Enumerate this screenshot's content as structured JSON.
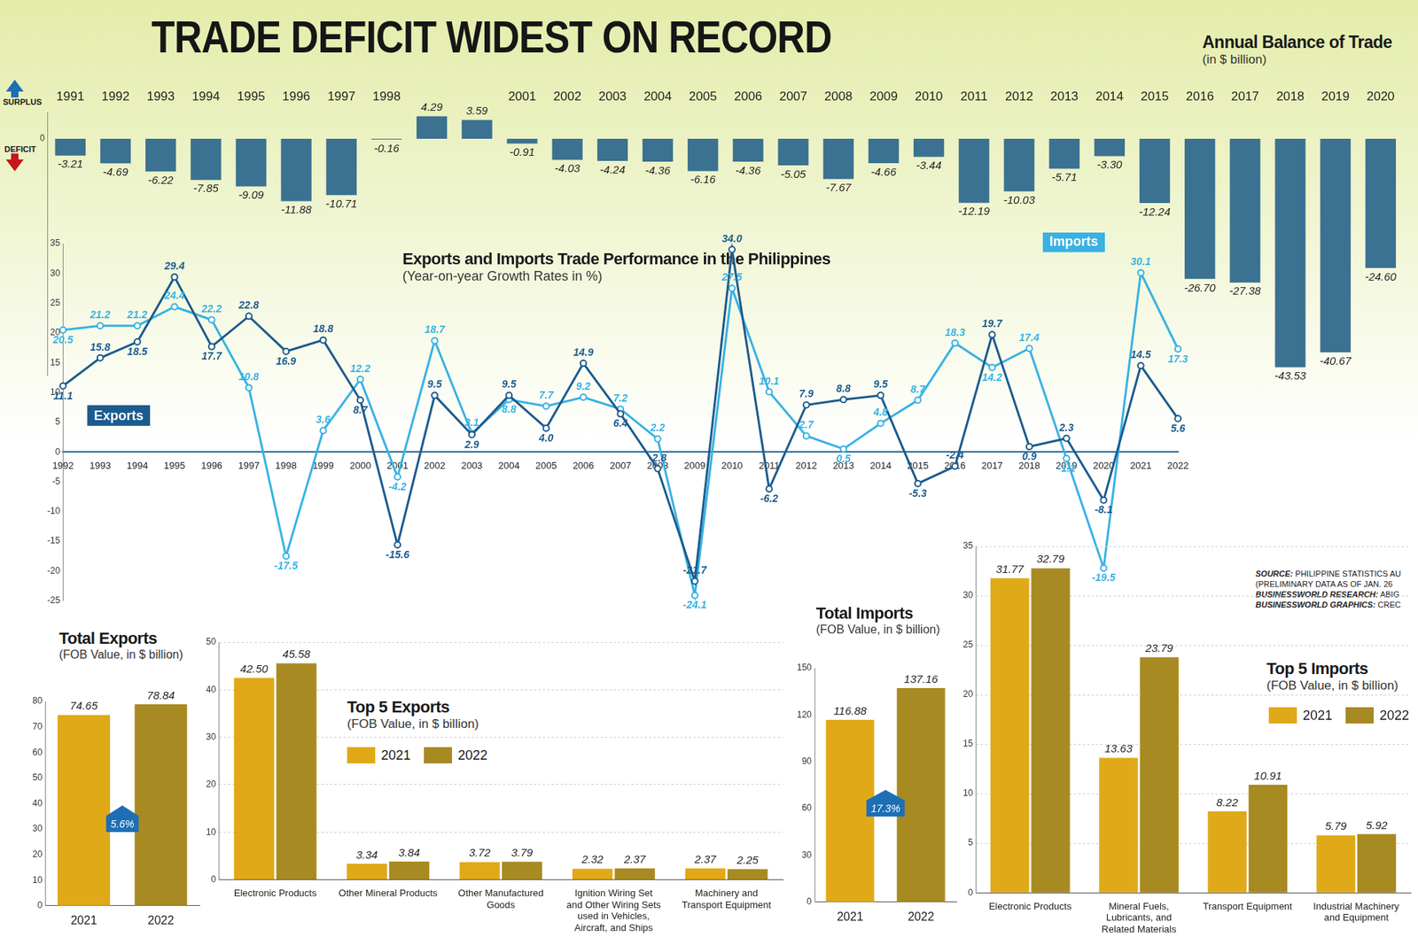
{
  "title": "TRADE DEFICIT WIDEST ON RECORD",
  "source": [
    "SOURCE: PHILIPPINE STATISTICS AU",
    "(PRELIMINARY DATA AS OF JAN. 26",
    "BUSINESSWORLD RESEARCH: ABIG",
    "BUSINESSWORLD GRAPHICS: CREC"
  ],
  "chart_data": [
    {
      "type": "bar",
      "title": "Annual Balance of Trade",
      "subtitle": "(in $ billion)",
      "annotations": {
        "surplus": "SURPLUS",
        "deficit": "DEFICIT"
      },
      "categories": [
        "1991",
        "1992",
        "1993",
        "1994",
        "1995",
        "1996",
        "1997",
        "1998",
        null,
        null,
        "2001",
        "2002",
        "2003",
        "2004",
        "2005",
        "2006",
        "2007",
        "2008",
        "2009",
        "2010",
        "2011",
        "2012",
        "2013",
        "2014",
        "2015",
        "2016",
        "2017",
        "2018",
        "2019",
        "2020"
      ],
      "values": [
        -3.21,
        -4.69,
        -6.22,
        -7.85,
        -9.09,
        -11.88,
        -10.71,
        -0.16,
        4.29,
        3.59,
        -0.91,
        -4.03,
        -4.24,
        -4.36,
        -6.16,
        -4.36,
        -5.05,
        -7.67,
        -4.66,
        -3.44,
        -12.19,
        -10.03,
        -5.71,
        -3.3,
        -12.24,
        -26.7,
        -27.38,
        -43.53,
        -40.67,
        -24.6
      ],
      "value_labels": [
        "-3.21",
        "-4.69",
        "-6.22",
        "-7.85",
        "-9.09",
        "-11.88",
        "-10.71",
        "-0.16",
        "4.29",
        "3.59",
        "-0.91",
        "-4.03",
        "-4.24",
        "-4.36",
        "-6.16",
        "-4.36",
        "-5.05",
        "-7.67",
        "-4.66",
        "-3.44",
        "-12.19",
        "-10.03",
        "-5.71",
        "-3.30",
        "-12.24",
        "-26.70",
        "-27.38",
        "-43.53",
        "-40.67",
        "-24.60"
      ],
      "color": "#3b7191",
      "ylim": [
        -45,
        5
      ],
      "yticks": [
        0
      ],
      "grid": false,
      "data_labels": true
    },
    {
      "type": "line",
      "title": "Exports and Imports Trade Performance in the Philippines",
      "subtitle": "(Year-on-year Growth Rates in %)",
      "categories": [
        "1992",
        "1993",
        "1994",
        "1995",
        "1996",
        "1997",
        "1998",
        "1999",
        "2000",
        "2001",
        "2002",
        "2003",
        "2004",
        "2005",
        "2006",
        "2007",
        "2008",
        "2009",
        "2010",
        "2011",
        "2012",
        "2013",
        "2014",
        "2015",
        "2016",
        "2017",
        "2018",
        "2019",
        "2020",
        "2021",
        "2022"
      ],
      "series": [
        {
          "name": "Exports",
          "color": "#1c5b8e",
          "values": [
            11.1,
            15.8,
            18.5,
            29.4,
            17.7,
            22.8,
            16.9,
            18.8,
            8.7,
            -15.6,
            9.5,
            2.9,
            9.5,
            4.0,
            14.9,
            6.4,
            -2.8,
            -21.7,
            34.0,
            -6.2,
            7.9,
            8.8,
            9.5,
            -5.3,
            -2.4,
            19.7,
            0.9,
            2.3,
            -8.1,
            14.5,
            5.6
          ],
          "value_labels": [
            "11.1",
            "15.8",
            "18.5",
            "29.4",
            "17.7",
            "22.8",
            "16.9",
            "18.8",
            "8.7",
            "-15.6",
            "9.5",
            "2.9",
            "9.5",
            "4.0",
            "14.9",
            "6.4",
            "-2.8",
            "-21.7",
            "34.0",
            "-6.2",
            "7.9",
            "8.8",
            "9.5",
            "-5.3",
            "-2.4",
            "19.7",
            "0.9",
            "2.3",
            "-8.1",
            "14.5",
            "5.6"
          ]
        },
        {
          "name": "Imports",
          "color": "#38b2e4",
          "values": [
            20.5,
            21.2,
            21.2,
            24.4,
            22.2,
            10.8,
            -17.5,
            3.6,
            12.2,
            -4.2,
            18.7,
            3.1,
            8.8,
            7.7,
            9.2,
            7.2,
            2.2,
            -24.1,
            27.5,
            10.1,
            2.7,
            0.5,
            4.8,
            8.7,
            18.3,
            14.2,
            17.4,
            -1.1,
            -19.5,
            30.1,
            17.3
          ],
          "value_labels": [
            "20.5",
            "21.2",
            "21.2",
            "24.4",
            "22.2",
            "10.8",
            "-17.5",
            "3.6",
            "12.2",
            "-4.2",
            "18.7",
            "3.1",
            "8.8",
            "7.7",
            "9.2",
            "7.2",
            "2.2",
            "-24.1",
            "27.5",
            "10.1",
            "2.7",
            "0.5",
            "4.8",
            "8.7",
            "18.3",
            "14.2",
            "17.4",
            "-1.1",
            "-19.5",
            "30.1",
            "17.3"
          ]
        }
      ],
      "ylim": [
        -25,
        35
      ],
      "yticks": [
        -25,
        -20,
        -15,
        -10,
        -5,
        0,
        5,
        10,
        15,
        20,
        25,
        30,
        35
      ],
      "grid": false,
      "data_labels": true,
      "marker": "circle"
    },
    {
      "type": "bar",
      "title": "Total Exports",
      "subtitle": "(FOB Value, in $ billion)",
      "categories": [
        "2021",
        "2022"
      ],
      "values": [
        74.65,
        78.84
      ],
      "value_labels": [
        "74.65",
        "78.84"
      ],
      "colors": [
        "#e0a918",
        "#a88a22"
      ],
      "annotations": [
        "5.6%"
      ],
      "ylim": [
        0,
        80
      ],
      "yticks": [
        0,
        10,
        20,
        30,
        40,
        50,
        60,
        70,
        80
      ],
      "grid": false,
      "data_labels": true
    },
    {
      "type": "bar",
      "title": "Top 5 Exports",
      "subtitle": "(FOB Value, in $ billion)",
      "categories": [
        "Electronic Products",
        "Other Mineral Products",
        "Other Manufactured Goods",
        "Ignition Wiring Set and Other Wiring Sets used in Vehicles, Aircraft, and Ships",
        "Machinery and Transport Equipment"
      ],
      "series": [
        {
          "name": "2021",
          "color": "#e0a918",
          "values": [
            42.5,
            3.34,
            3.72,
            2.32,
            2.37
          ],
          "value_labels": [
            "42.50",
            "3.34",
            "3.72",
            "2.32",
            "2.37"
          ]
        },
        {
          "name": "2022",
          "color": "#a88a22",
          "values": [
            45.58,
            3.84,
            3.79,
            2.37,
            2.25
          ],
          "value_labels": [
            "45.58",
            "3.84",
            "3.79",
            "2.37",
            "2.25"
          ]
        }
      ],
      "ylim": [
        0,
        50
      ],
      "yticks": [
        0,
        10,
        20,
        30,
        40,
        50
      ],
      "grid": true,
      "legend": "upper center",
      "data_labels": true
    },
    {
      "type": "bar",
      "title": "Total Imports",
      "subtitle": "(FOB Value, in $ billion)",
      "categories": [
        "2021",
        "2022"
      ],
      "values": [
        116.88,
        137.16
      ],
      "value_labels": [
        "116.88",
        "137.16"
      ],
      "colors": [
        "#e0a918",
        "#a88a22"
      ],
      "annotations": [
        "17.3%"
      ],
      "ylim": [
        0,
        150
      ],
      "yticks": [
        0,
        30,
        60,
        90,
        120,
        150
      ],
      "grid": false,
      "data_labels": true
    },
    {
      "type": "bar",
      "title": "Top 5 Imports",
      "subtitle": "(FOB Value, in $ billion)",
      "categories": [
        "Electronic Products",
        "Mineral Fuels, Lubricants, and Related Materials",
        "Transport Equipment",
        "Industrial Machinery and Equipment"
      ],
      "series": [
        {
          "name": "2021",
          "color": "#e0a918",
          "values": [
            31.77,
            13.63,
            8.22,
            5.79
          ],
          "value_labels": [
            "31.77",
            "13.63",
            "8.22",
            "5.79"
          ]
        },
        {
          "name": "2022",
          "color": "#a88a22",
          "values": [
            32.79,
            23.79,
            10.91,
            5.92
          ],
          "value_labels": [
            "32.79",
            "23.79",
            "10.91",
            "5.92"
          ]
        }
      ],
      "ylim": [
        0,
        35
      ],
      "yticks": [
        0,
        5,
        10,
        15,
        20,
        25,
        30,
        35
      ],
      "grid": true,
      "legend": "upper right",
      "data_labels": true
    }
  ]
}
